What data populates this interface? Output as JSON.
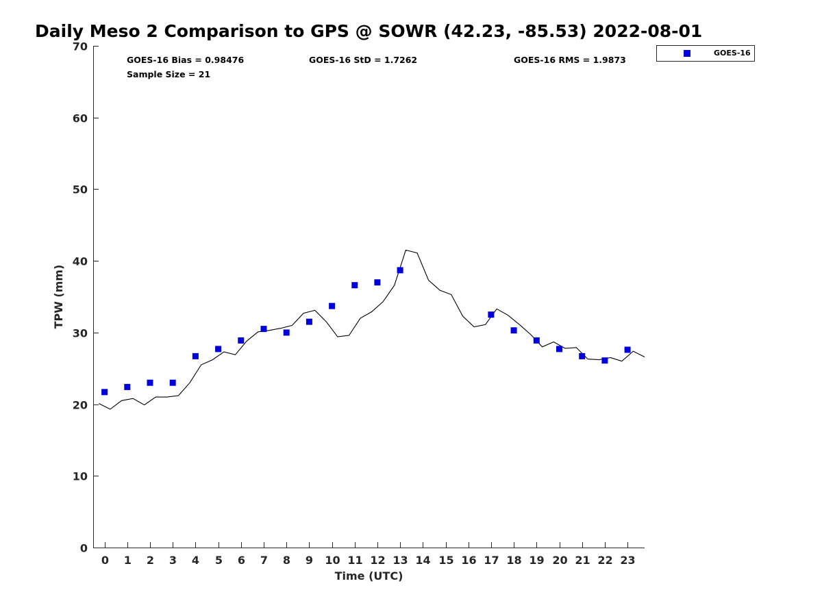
{
  "chart_data": {
    "type": "scatter",
    "title": "Daily Meso 2 Comparison to GPS @ SOWR (42.23, -85.53) 2022-08-01",
    "xlabel": "Time (UTC)",
    "ylabel": "TPW (mm)",
    "xlim": [
      -0.5,
      23.75
    ],
    "ylim": [
      0,
      70
    ],
    "x_ticks": [
      "0",
      "1",
      "2",
      "3",
      "4",
      "5",
      "6",
      "7",
      "8",
      "9",
      "10",
      "11",
      "12",
      "13",
      "14",
      "15",
      "16",
      "17",
      "18",
      "19",
      "20",
      "21",
      "22",
      "23"
    ],
    "y_ticks": [
      "0",
      "10",
      "20",
      "30",
      "40",
      "50",
      "60",
      "70"
    ],
    "grid": false,
    "legend_position": "top-right (outside plot)",
    "stats": {
      "bias": "GOES-16 Bias = 0.98476",
      "std": "GOES-16 StD = 1.7262",
      "rms": "GOES-16 RMS = 1.9873",
      "sample": "Sample Size = 21"
    },
    "series": [
      {
        "name": "GOES-16",
        "kind": "markers",
        "color": "#0000dd",
        "x": [
          0,
          1,
          2,
          3,
          4,
          5,
          6,
          7,
          8,
          9,
          10,
          11,
          12,
          13,
          17,
          18,
          19,
          20,
          21,
          22,
          23
        ],
        "y": [
          21.7,
          22.4,
          23.0,
          23.0,
          26.7,
          27.7,
          28.9,
          30.5,
          30.0,
          31.5,
          33.7,
          36.6,
          37.0,
          38.7,
          32.5,
          30.3,
          28.9,
          27.7,
          26.7,
          26.1,
          27.6
        ]
      },
      {
        "kind": "line",
        "color": "#000000",
        "x": [
          -0.25,
          0.25,
          0.75,
          1.25,
          1.75,
          2.25,
          2.75,
          3.25,
          3.75,
          4.25,
          4.75,
          5.25,
          5.75,
          6.25,
          6.75,
          7.25,
          7.75,
          8.25,
          8.75,
          9.25,
          9.75,
          10.25,
          10.75,
          11.25,
          11.75,
          12.25,
          12.75,
          13.25,
          13.75,
          14.25,
          14.75,
          15.25,
          15.75,
          16.25,
          16.75,
          17.25,
          17.75,
          18.25,
          18.75,
          19.25,
          19.75,
          20.25,
          20.75,
          21.25,
          21.75,
          22.25,
          22.75,
          23.25,
          23.75
        ],
        "y": [
          20.1,
          19.3,
          20.5,
          20.8,
          19.9,
          21.0,
          21.0,
          21.2,
          23.0,
          25.5,
          26.2,
          27.3,
          26.9,
          28.8,
          30.1,
          30.3,
          30.6,
          31.0,
          32.7,
          33.1,
          31.5,
          29.4,
          29.6,
          32.0,
          32.9,
          34.3,
          36.6,
          41.5,
          41.1,
          37.3,
          35.9,
          35.3,
          32.3,
          30.8,
          31.1,
          33.3,
          32.4,
          31.1,
          29.7,
          28.0,
          28.7,
          27.8,
          27.9,
          26.3,
          26.2,
          26.5,
          26.0,
          27.4,
          26.6
        ]
      }
    ]
  }
}
